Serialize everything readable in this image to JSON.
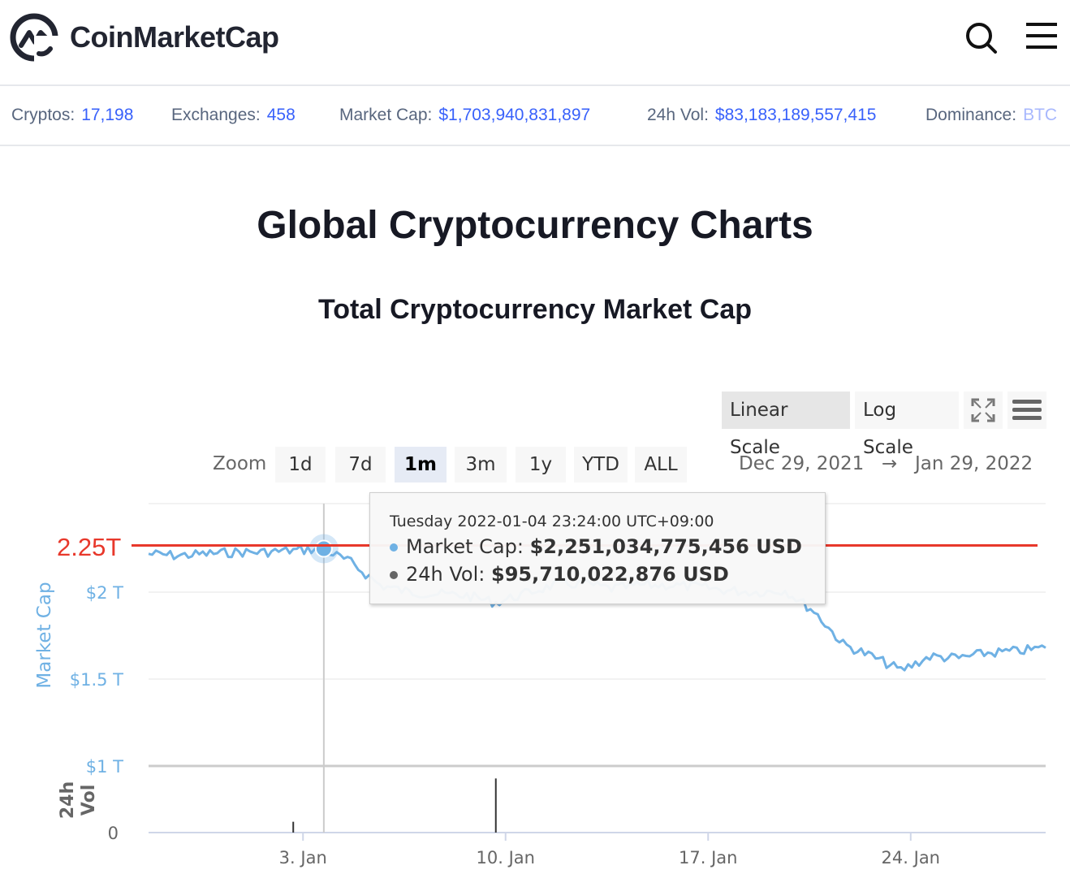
{
  "header": {
    "logo_text": "CoinMarketCap",
    "search_icon": "search-icon",
    "menu_icon": "hamburger-menu-icon"
  },
  "stats": {
    "cryptos_label": "Cryptos:",
    "cryptos_value": "17,198",
    "exchanges_label": "Exchanges:",
    "exchanges_value": "458",
    "marketcap_label": "Market Cap:",
    "marketcap_value": "$1,703,940,831,897",
    "vol_label": "24h Vol:",
    "vol_value": "$83,183,189,557,415",
    "dominance_label": "Dominance:",
    "dominance_value": "BTC"
  },
  "page_title": "Global Cryptocurrency Charts",
  "chart_title": "Total Cryptocurrency Market Cap",
  "controls": {
    "linear_scale": "Linear Scale",
    "log_scale": "Log Scale",
    "zoom_label": "Zoom",
    "zoom_options": [
      "1d",
      "7d",
      "1m",
      "3m",
      "1y",
      "YTD",
      "ALL"
    ],
    "zoom_selected": "1m",
    "range_from": "Dec 29, 2021",
    "range_arrow": "→",
    "range_to": "Jan 29, 2022"
  },
  "tooltip": {
    "header": "Tuesday 2022-01-04 23:24:00 UTC+09:00",
    "mc_label": "Market Cap:",
    "mc_value": "$2,251,034,775,456 USD",
    "vol_label": "24h Vol:",
    "vol_value": "$95,710,022,876 USD"
  },
  "annotation": "2.25T",
  "colors": {
    "accent": "#3861fb",
    "series": "#6fb1e4",
    "annotation": "#e8382b"
  },
  "chart_data": {
    "type": "line",
    "title": "Total Cryptocurrency Market Cap",
    "ylabel": "Market Cap",
    "ylim": [
      1000000000000,
      2250000000000
    ],
    "ytick_labels": [
      "$1 T",
      "$1.5 T",
      "$2 T"
    ],
    "yticks": [
      1000000000000,
      1500000000000,
      2000000000000
    ],
    "vol_axis_label": "24h Vol",
    "vol_ytick_labels": [
      "0"
    ],
    "xtick_labels": [
      "3. Jan",
      "10. Jan",
      "17. Jan",
      "24. Jan"
    ],
    "xticks": [
      "2022-01-03",
      "2022-01-10",
      "2022-01-17",
      "2022-01-24"
    ],
    "xlim": [
      "2021-12-29",
      "2022-01-29"
    ],
    "series": [
      {
        "values": [
          [
            "2021-12-29",
            2220000000000.0
          ],
          [
            "2021-12-30",
            2210000000000.0
          ],
          [
            "2021-12-31",
            2220000000000.0
          ],
          [
            "2022-01-01",
            2230000000000.0
          ],
          [
            "2022-01-02",
            2230000000000.0
          ],
          [
            "2022-01-03",
            2240000000000.0
          ],
          [
            "2022-01-04",
            2250000000000.0
          ],
          [
            "2022-01-05",
            2170000000000.0
          ],
          [
            "2022-01-06",
            2040000000000.0
          ],
          [
            "2022-01-07",
            2000000000000.0
          ],
          [
            "2022-01-08",
            1990000000000.0
          ],
          [
            "2022-01-09",
            1980000000000.0
          ],
          [
            "2022-01-10",
            1940000000000.0
          ],
          [
            "2022-01-11",
            1990000000000.0
          ],
          [
            "2022-01-12",
            2040000000000.0
          ],
          [
            "2022-01-13",
            2050000000000.0
          ],
          [
            "2022-01-14",
            2020000000000.0
          ],
          [
            "2022-01-15",
            2040000000000.0
          ],
          [
            "2022-01-16",
            2040000000000.0
          ],
          [
            "2022-01-17",
            2030000000000.0
          ],
          [
            "2022-01-18",
            2010000000000.0
          ],
          [
            "2022-01-19",
            2000000000000.0
          ],
          [
            "2022-01-20",
            2010000000000.0
          ],
          [
            "2022-01-21",
            1890000000000.0
          ],
          [
            "2022-01-22",
            1700000000000.0
          ],
          [
            "2022-01-23",
            1630000000000.0
          ],
          [
            "2022-01-24",
            1550000000000.0
          ],
          [
            "2022-01-25",
            1630000000000.0
          ],
          [
            "2022-01-26",
            1620000000000.0
          ],
          [
            "2022-01-27",
            1650000000000.0
          ],
          [
            "2022-01-28",
            1660000000000.0
          ],
          [
            "2022-01-29",
            1680000000000.0
          ]
        ]
      }
    ],
    "volume_spikes": [
      [
        "2022-01-03",
        20000000000.0
      ],
      [
        "2022-01-10",
        100000000000.0
      ]
    ],
    "hover_date": "2022-01-04",
    "annotation_line_value": 2250000000000.0,
    "grid": true
  }
}
